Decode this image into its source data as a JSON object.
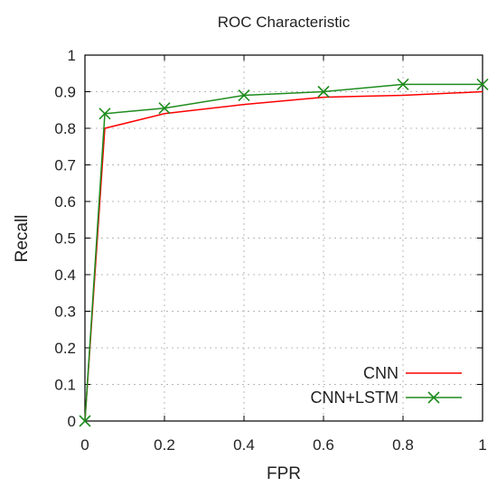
{
  "chart_data": {
    "type": "line",
    "title": "ROC Characteristic",
    "xlabel": "FPR",
    "ylabel": "Recall",
    "xlim": [
      0,
      1
    ],
    "ylim": [
      0,
      1
    ],
    "xticks": [
      0,
      0.2,
      0.4,
      0.6,
      0.8,
      1
    ],
    "xtick_labels": [
      "0",
      "0.2",
      "0.4",
      "0.6",
      "0.8",
      "1"
    ],
    "yticks": [
      0,
      0.1,
      0.2,
      0.3,
      0.4,
      0.5,
      0.6,
      0.7,
      0.8,
      0.9,
      1
    ],
    "ytick_labels": [
      "0",
      "0.1",
      "0.2",
      "0.3",
      "0.4",
      "0.5",
      "0.6",
      "0.7",
      "0.8",
      "0.9",
      "1"
    ],
    "grid": true,
    "legend_position": "bottom-right",
    "series": [
      {
        "name": "CNN",
        "color": "#ff0000",
        "marker": "none",
        "x": [
          0,
          0.05,
          0.2,
          0.4,
          0.6,
          0.8,
          1.0
        ],
        "y": [
          0,
          0.8,
          0.84,
          0.865,
          0.885,
          0.89,
          0.9
        ]
      },
      {
        "name": "CNN+LSTM",
        "color": "#1e8c1e",
        "marker": "x",
        "x": [
          0,
          0.05,
          0.2,
          0.4,
          0.6,
          0.8,
          1.0
        ],
        "y": [
          0,
          0.84,
          0.855,
          0.89,
          0.9,
          0.92,
          0.92
        ]
      }
    ]
  }
}
